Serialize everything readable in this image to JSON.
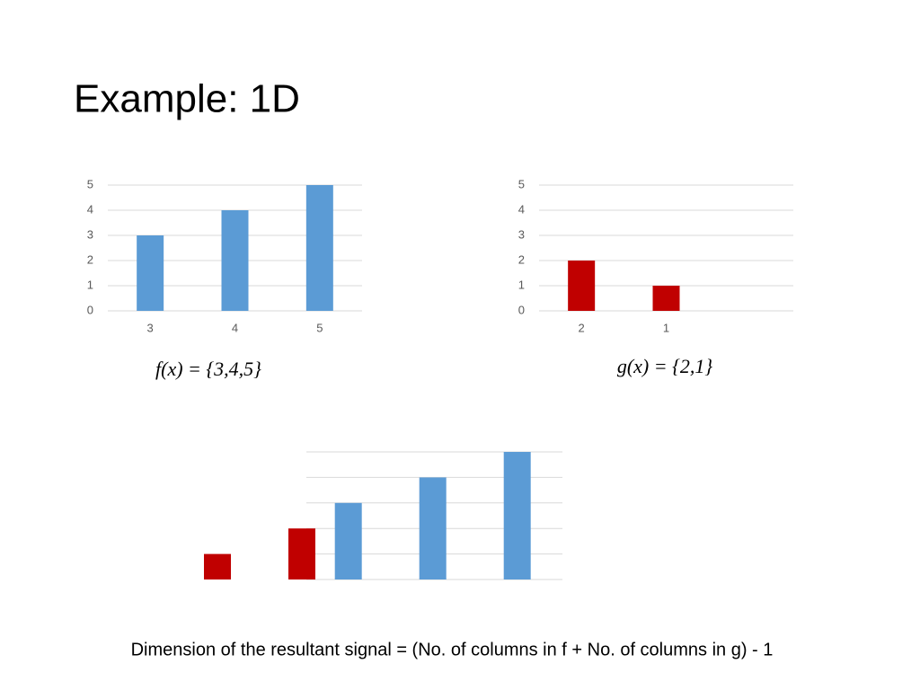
{
  "title": "Example: 1D",
  "formula_f": "f(x) = {3,4,5}",
  "formula_g": "g(x) = {2,1}",
  "caption": "Dimension of the resultant signal = (No. of columns in f + No. of columns in g) - 1",
  "chart_data": [
    {
      "type": "bar",
      "categories": [
        "3",
        "4",
        "5"
      ],
      "values": [
        3,
        4,
        5
      ],
      "color": "#5b9bd5",
      "ylim": [
        0,
        5
      ],
      "yticks": [
        0,
        1,
        2,
        3,
        4,
        5
      ],
      "grid": true,
      "tick_labels": true
    },
    {
      "type": "bar",
      "categories": [
        "2",
        "1",
        null
      ],
      "values": [
        2,
        1,
        null
      ],
      "color": "#c00000",
      "ylim": [
        0,
        5
      ],
      "yticks": [
        0,
        1,
        2,
        3,
        4,
        5
      ],
      "grid": true,
      "tick_labels": true
    },
    {
      "type": "bar",
      "xlim": [
        -1.5,
        4.5
      ],
      "ylim": [
        0,
        5
      ],
      "yticks": [
        0,
        1,
        2,
        3,
        4,
        5
      ],
      "grid": true,
      "tick_labels": false,
      "series": [
        {
          "color": "#c00000",
          "x": [
            0,
            1
          ],
          "values": [
            1,
            2
          ]
        },
        {
          "color": "#5b9bd5",
          "x": [
            1.55,
            2.55,
            3.55
          ],
          "values": [
            3,
            4,
            5
          ]
        }
      ]
    }
  ]
}
